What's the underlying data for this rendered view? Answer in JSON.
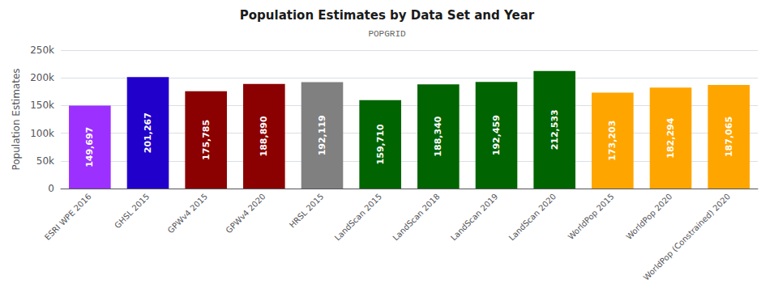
{
  "chart_data": {
    "type": "bar",
    "title": "Population Estimates by Data Set and Year",
    "subtitle": "POPGRID",
    "categories": [
      "ESRI WPE 2016",
      "GHSL 2015",
      "GPWv4 2015",
      "GPWv4 2020",
      "HRSL 2015",
      "LandScan 2015",
      "LandScan 2018",
      "LandScan 2019",
      "LandScan 2020",
      "WorldPop 2015",
      "WorldPop 2020",
      "WorldPop (Constrained) 2020"
    ],
    "values": [
      149697,
      201267,
      175785,
      188890,
      192119,
      159710,
      188340,
      192459,
      212533,
      173203,
      182294,
      187065
    ],
    "value_labels": [
      "149,697",
      "201,267",
      "175,785",
      "188,890",
      "192,119",
      "159,710",
      "188,340",
      "192,459",
      "212,533",
      "173,203",
      "182,294",
      "187,065"
    ],
    "colors": [
      "#9B30FF",
      "#2200CC",
      "#8B0000",
      "#8B0000",
      "#808080",
      "#006400",
      "#006400",
      "#006400",
      "#006400",
      "#FFA500",
      "#FFA500",
      "#FFA500"
    ],
    "data_labels": true,
    "ylabel": "Population Estimates",
    "ylim": [
      0,
      250000
    ],
    "yticks": [
      0,
      {
        "value": 50000,
        "label": "50k"
      },
      {
        "value": 100000,
        "label": "100k"
      },
      {
        "value": 150000,
        "label": "150k"
      },
      {
        "value": 200000,
        "label": "200k"
      },
      {
        "value": 250000,
        "label": "250k"
      }
    ],
    "grid": true
  }
}
